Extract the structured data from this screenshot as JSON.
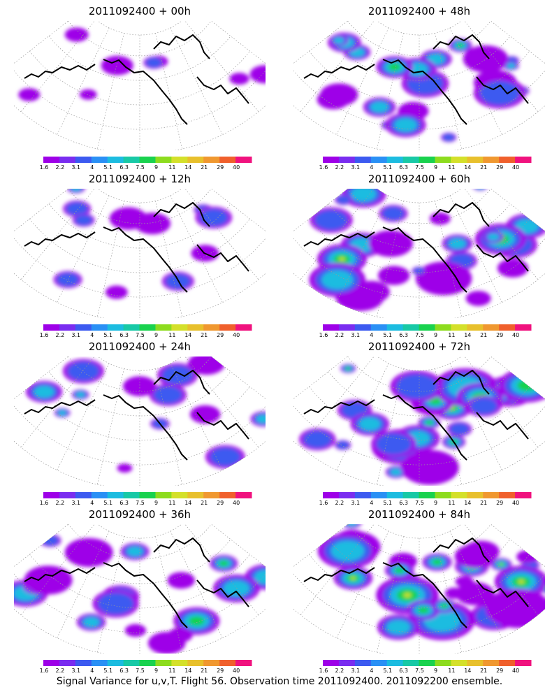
{
  "panels": [
    {
      "title": "2011092400 + 00h",
      "forecast_hour": 0
    },
    {
      "title": "2011092400 + 48h",
      "forecast_hour": 48
    },
    {
      "title": "2011092400 + 12h",
      "forecast_hour": 12
    },
    {
      "title": "2011092400 + 60h",
      "forecast_hour": 60
    },
    {
      "title": "2011092400 + 24h",
      "forecast_hour": 24
    },
    {
      "title": "2011092400 + 72h",
      "forecast_hour": 72
    },
    {
      "title": "2011092400 + 36h",
      "forecast_hour": 36
    },
    {
      "title": "2011092400 + 84h",
      "forecast_hour": 84
    }
  ],
  "colorbar": {
    "labels": [
      "1.6",
      "2.2",
      "3.1",
      "4",
      "5.1",
      "6.3",
      "7.5",
      "9",
      "11",
      "14",
      "21",
      "29",
      "40"
    ],
    "colors": [
      "#9e00e8",
      "#7a2df0",
      "#3c5af0",
      "#2a90f5",
      "#1cbce0",
      "#18c9a6",
      "#19d24e",
      "#8ddc1e",
      "#d4e02a",
      "#e8c02c",
      "#f09830",
      "#f0602c",
      "#f0127e"
    ]
  },
  "caption": "Signal Variance for u,v,T. Flight 56. Observation time 2011092400. 2011092200 ensemble."
}
